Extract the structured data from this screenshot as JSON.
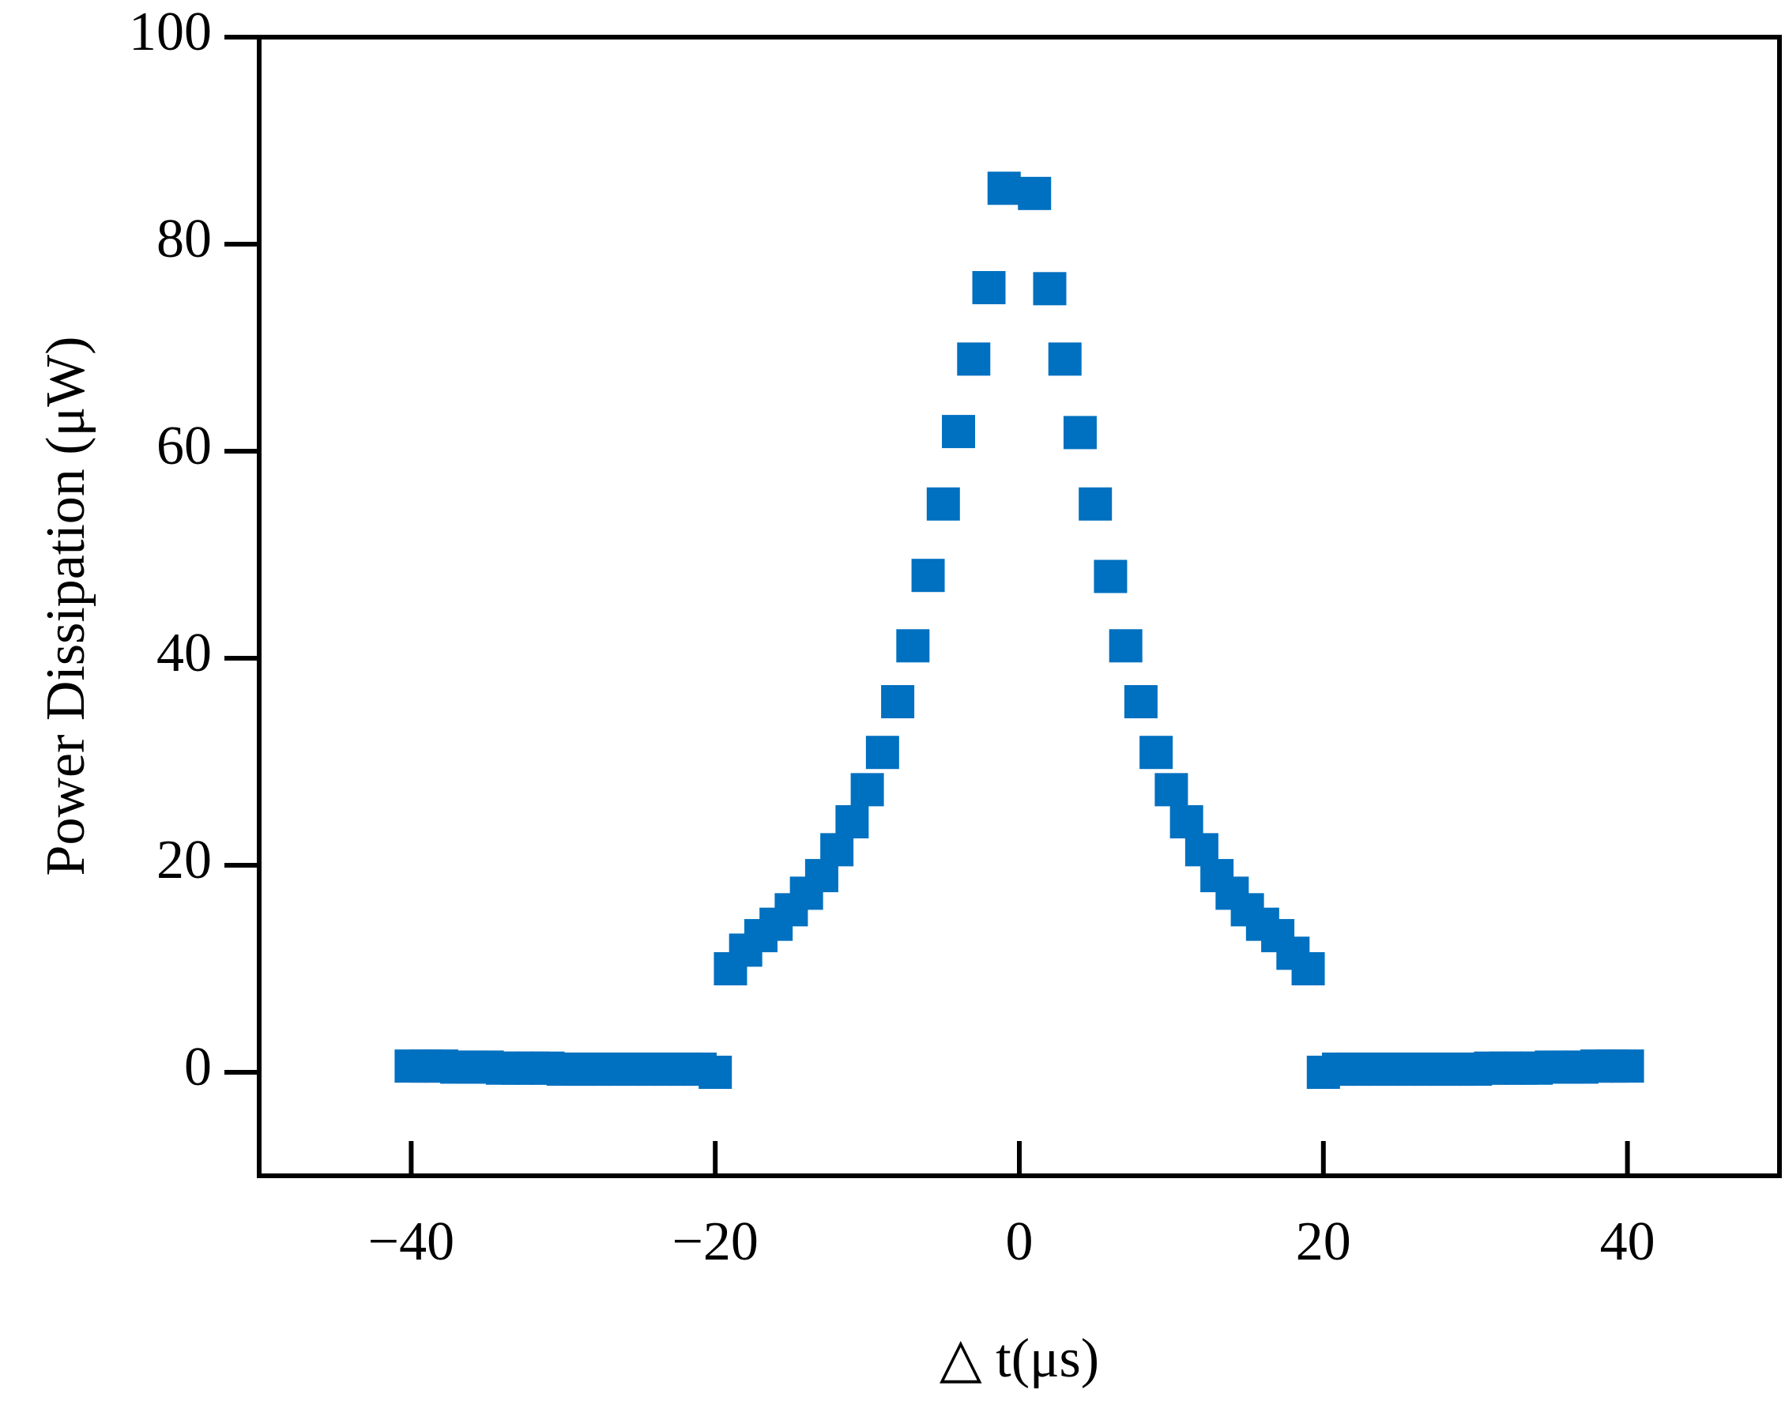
{
  "chart_data": {
    "type": "scatter",
    "x_label": "△ t(μs)",
    "y_label": "Power Dissipation (μW)",
    "xlim": [
      -50,
      50
    ],
    "ylim": [
      -10,
      100
    ],
    "xticks": [
      {
        "value": -40,
        "label": "−40"
      },
      {
        "value": -20,
        "label": "−20"
      },
      0,
      20,
      40
    ],
    "yticks": [
      0,
      20,
      40,
      60,
      80,
      100
    ],
    "series": [
      {
        "color": "#0070c0",
        "x": [
          -40,
          -39,
          -38,
          -37,
          -36,
          -35,
          -34,
          -33,
          -32,
          -31,
          -30,
          -29,
          -28,
          -27,
          -26,
          -25,
          -24,
          -23,
          -22,
          -21,
          -20,
          -19,
          -18,
          -17,
          -16,
          -15,
          -14,
          -13,
          -12,
          -11,
          -10,
          -9,
          -8,
          -7,
          -6,
          -5,
          -4,
          -3,
          -2,
          -1,
          1,
          2,
          3,
          4,
          5,
          6,
          7,
          8,
          9,
          10,
          11,
          12,
          13,
          14,
          15,
          16,
          17,
          18,
          19,
          20,
          21,
          22,
          23,
          24,
          25,
          26,
          27,
          28,
          29,
          30,
          31,
          32,
          33,
          34,
          35,
          36,
          37,
          38,
          39,
          40
        ],
        "values": [
          0.6,
          0.6,
          0.6,
          0.5,
          0.5,
          0.5,
          0.4,
          0.4,
          0.4,
          0.4,
          0.3,
          0.3,
          0.3,
          0.3,
          0.3,
          0.3,
          0.3,
          0.3,
          0.3,
          0.3,
          0,
          10.0,
          11.8,
          13.2,
          14.3,
          15.7,
          17.3,
          19.0,
          21.5,
          24.2,
          27.3,
          30.9,
          35.8,
          41.2,
          48.0,
          54.9,
          61.9,
          68.9,
          75.8,
          85.4,
          84.9,
          75.7,
          68.9,
          61.8,
          54.9,
          47.9,
          41.2,
          35.8,
          30.9,
          27.3,
          24.2,
          21.5,
          19.0,
          17.3,
          15.7,
          14.3,
          13.2,
          11.5,
          10.0,
          0,
          0.3,
          0.3,
          0.3,
          0.3,
          0.3,
          0.3,
          0.3,
          0.3,
          0.3,
          0.3,
          0.4,
          0.4,
          0.4,
          0.4,
          0.5,
          0.5,
          0.5,
          0.6,
          0.6,
          0.6
        ]
      }
    ]
  }
}
